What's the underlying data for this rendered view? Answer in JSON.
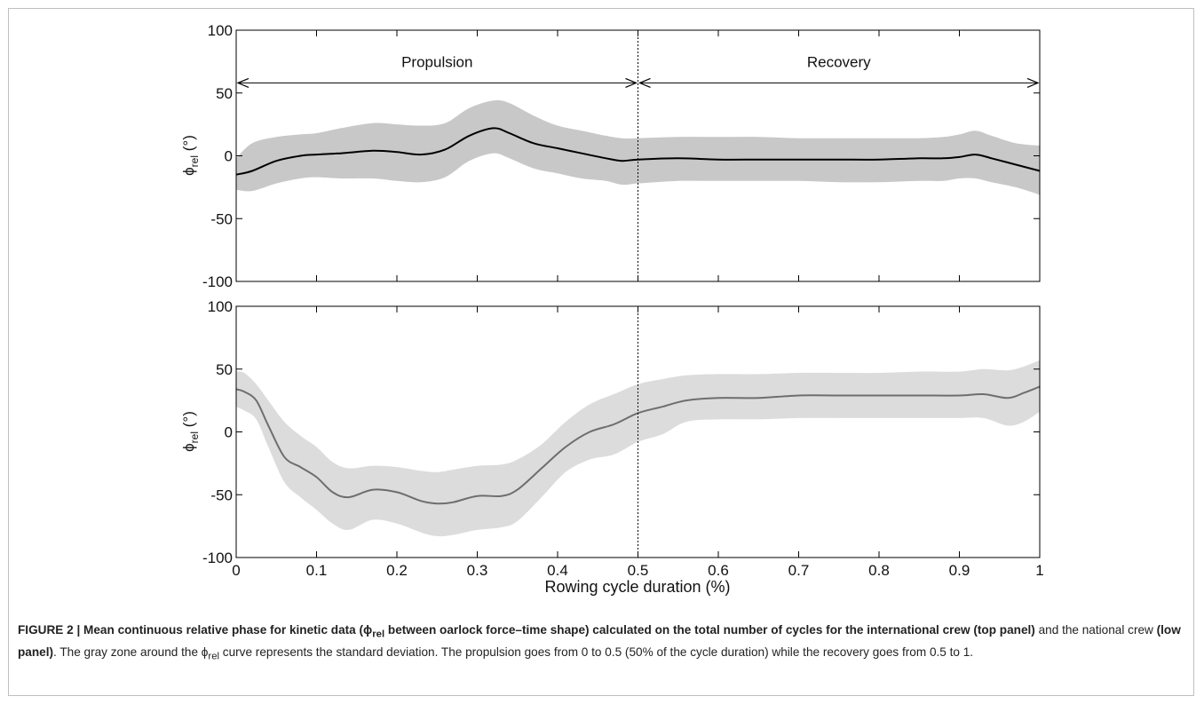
{
  "figure": {
    "caption_label": "FIGURE 2 | Mean continuous relative phase for kinetic data (",
    "caption_bold_sym": "ϕ",
    "caption_bold_sub": "rel",
    "caption_bold_rest": " between oarlock force–time shape) calculated on the total number of cycles for the international crew ",
    "caption_top_panel": "(top panel)",
    "caption_and": " and the national crew ",
    "caption_low_panel": "(low panel)",
    "caption_rest_1": ". The gray zone around the ",
    "caption_sym": "ϕ",
    "caption_sub": "rel",
    "caption_rest_2": " curve represents the standard deviation. The propulsion goes from 0 to 0.5 (50% of the cycle duration) while the recovery goes from 0.5 to 1."
  },
  "chart_data": [
    {
      "type": "line",
      "panel": "top",
      "ylabel_symbol": "ϕ",
      "ylabel_sub": "rel",
      "ylabel_unit": " (°)",
      "xlim": [
        0,
        1
      ],
      "ylim": [
        -100,
        100
      ],
      "yticks": [
        "100",
        "50",
        "0",
        "-50",
        "-100"
      ],
      "phase_divider_x": 0.5,
      "annotations": [
        {
          "text": "Propulsion",
          "x": 0.25,
          "y": 75,
          "arrow_from": 0,
          "arrow_to": 0.5,
          "arrow_y": 58
        },
        {
          "text": "Recovery",
          "x": 0.75,
          "y": 75,
          "arrow_from": 0.5,
          "arrow_to": 1,
          "arrow_y": 58
        }
      ],
      "colors": {
        "line": "#000000",
        "band": "#c8c8c8"
      },
      "series": [
        {
          "x": [
            0,
            0.02,
            0.05,
            0.08,
            0.1,
            0.13,
            0.17,
            0.2,
            0.23,
            0.26,
            0.29,
            0.32,
            0.34,
            0.37,
            0.4,
            0.43,
            0.46,
            0.48,
            0.5,
            0.55,
            0.6,
            0.65,
            0.7,
            0.75,
            0.8,
            0.85,
            0.88,
            0.9,
            0.92,
            0.94,
            0.97,
            1
          ],
          "mean": [
            -15,
            -12,
            -4,
            0,
            1,
            2,
            4,
            3,
            1,
            5,
            16,
            22,
            18,
            10,
            6,
            2,
            -2,
            -4,
            -3,
            -2,
            -3,
            -3,
            -3,
            -3,
            -3,
            -2,
            -2,
            -1,
            1,
            -2,
            -7,
            -12
          ],
          "upper": [
            -2,
            10,
            15,
            17,
            18,
            22,
            26,
            25,
            24,
            26,
            38,
            44,
            42,
            32,
            24,
            20,
            16,
            14,
            14,
            15,
            15,
            15,
            14,
            14,
            14,
            14,
            15,
            17,
            20,
            16,
            10,
            8
          ],
          "lower": [
            -27,
            -28,
            -22,
            -18,
            -17,
            -18,
            -18,
            -20,
            -21,
            -17,
            -4,
            2,
            -2,
            -10,
            -14,
            -18,
            -20,
            -23,
            -22,
            -20,
            -20,
            -20,
            -20,
            -21,
            -21,
            -20,
            -20,
            -18,
            -18,
            -21,
            -25,
            -31
          ]
        }
      ]
    },
    {
      "type": "line",
      "panel": "bottom",
      "ylabel_symbol": "ϕ",
      "ylabel_sub": "rel",
      "ylabel_unit": " (°)",
      "xlabel": "Rowing cycle duration (%)",
      "xlim": [
        0,
        1
      ],
      "ylim": [
        -100,
        100
      ],
      "xticks": [
        "0",
        "0.1",
        "0.2",
        "0.3",
        "0.4",
        "0.5",
        "0.6",
        "0.7",
        "0.8",
        "0.9",
        "1"
      ],
      "yticks": [
        "100",
        "50",
        "0",
        "-50",
        "-100"
      ],
      "phase_divider_x": 0.5,
      "colors": {
        "line": "#6e6e6e",
        "band": "#dcdcdc"
      },
      "series": [
        {
          "x": [
            0,
            0.01,
            0.025,
            0.04,
            0.06,
            0.08,
            0.1,
            0.12,
            0.14,
            0.17,
            0.2,
            0.23,
            0.25,
            0.27,
            0.3,
            0.33,
            0.35,
            0.38,
            0.41,
            0.44,
            0.47,
            0.5,
            0.53,
            0.56,
            0.6,
            0.65,
            0.7,
            0.75,
            0.8,
            0.85,
            0.9,
            0.93,
            0.96,
            0.98,
            1
          ],
          "mean": [
            34,
            32,
            25,
            5,
            -20,
            -28,
            -36,
            -48,
            -52,
            -46,
            -48,
            -55,
            -57,
            -56,
            -51,
            -51,
            -46,
            -29,
            -12,
            0,
            6,
            15,
            20,
            25,
            27,
            27,
            29,
            29,
            29,
            29,
            29,
            30,
            27,
            31,
            36
          ],
          "upper": [
            48,
            47,
            38,
            25,
            8,
            -3,
            -12,
            -24,
            -29,
            -27,
            -28,
            -31,
            -32,
            -30,
            -27,
            -26,
            -22,
            -10,
            8,
            22,
            30,
            38,
            42,
            45,
            46,
            46,
            47,
            47,
            47,
            48,
            48,
            50,
            49,
            52,
            57
          ],
          "lower": [
            20,
            17,
            10,
            -12,
            -40,
            -52,
            -62,
            -73,
            -78,
            -70,
            -73,
            -80,
            -83,
            -82,
            -78,
            -76,
            -71,
            -52,
            -32,
            -22,
            -18,
            -8,
            -2,
            8,
            10,
            10,
            11,
            11,
            11,
            11,
            11,
            11,
            5,
            8,
            16
          ]
        }
      ]
    }
  ]
}
